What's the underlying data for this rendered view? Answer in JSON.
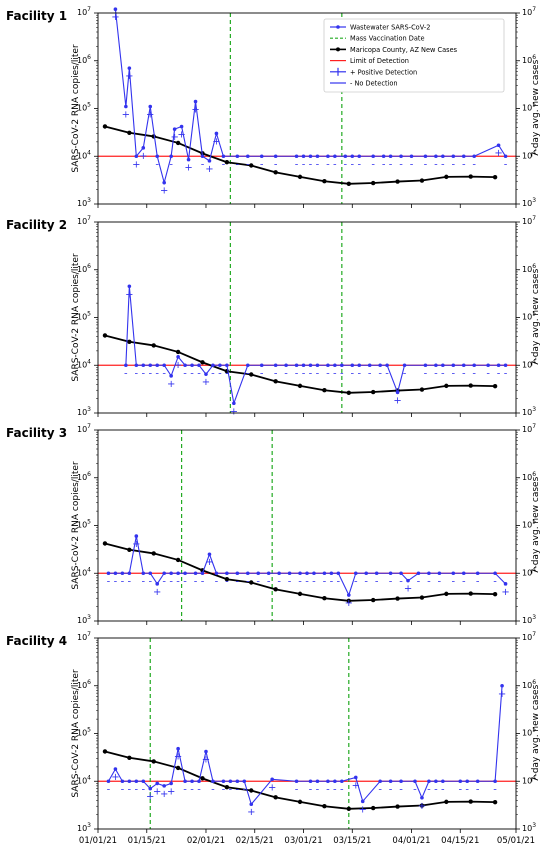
{
  "chart_data": [
    {
      "type": "line",
      "title": "Facility 1",
      "ylabel": "SARS-CoV-2 RNA copies/liter",
      "ylabel_right": "7-day avg. new cases",
      "yscale": "log",
      "ylim": [
        1000,
        10000000
      ],
      "xlim": [
        "2021-01-01",
        "2021-05-01"
      ],
      "limit_of_detection": 10000,
      "vaccination_dates": [
        "2021-02-08",
        "2021-03-12"
      ],
      "wastewater": [
        [
          "2021-01-06",
          12000000,
          "+"
        ],
        [
          "2021-01-09",
          110000,
          "+"
        ],
        [
          "2021-01-10",
          700000,
          "+"
        ],
        [
          "2021-01-12",
          10000,
          "+"
        ],
        [
          "2021-01-14",
          15000,
          "+"
        ],
        [
          "2021-01-16",
          110000,
          "+"
        ],
        [
          "2021-01-18",
          10000,
          "-"
        ],
        [
          "2021-01-20",
          2800,
          "+"
        ],
        [
          "2021-01-22",
          10000,
          "-"
        ],
        [
          "2021-01-23",
          37000,
          "+"
        ],
        [
          "2021-01-25",
          42000,
          "+"
        ],
        [
          "2021-01-27",
          8500,
          "+"
        ],
        [
          "2021-01-29",
          140000,
          "+"
        ],
        [
          "2021-01-31",
          10000,
          "-"
        ],
        [
          "2021-02-02",
          8000,
          "+"
        ],
        [
          "2021-02-04",
          30000,
          "+"
        ],
        [
          "2021-02-06",
          10000,
          "-"
        ],
        [
          "2021-02-10",
          10000,
          "-"
        ],
        [
          "2021-02-13",
          10000,
          "-"
        ],
        [
          "2021-02-17",
          10000,
          "-"
        ],
        [
          "2021-02-21",
          10000,
          "-"
        ],
        [
          "2021-02-27",
          10000,
          "-"
        ],
        [
          "2021-03-01",
          10000,
          "-"
        ],
        [
          "2021-03-03",
          10000,
          "-"
        ],
        [
          "2021-03-05",
          10000,
          "-"
        ],
        [
          "2021-03-08",
          10000,
          "-"
        ],
        [
          "2021-03-10",
          10000,
          "-"
        ],
        [
          "2021-03-13",
          10000,
          "-"
        ],
        [
          "2021-03-15",
          10000,
          "-"
        ],
        [
          "2021-03-17",
          10000,
          "-"
        ],
        [
          "2021-03-21",
          10000,
          "-"
        ],
        [
          "2021-03-24",
          10000,
          "-"
        ],
        [
          "2021-03-26",
          10000,
          "-"
        ],
        [
          "2021-03-29",
          10000,
          "-"
        ],
        [
          "2021-04-01",
          10000,
          "-"
        ],
        [
          "2021-04-05",
          10000,
          "-"
        ],
        [
          "2021-04-08",
          10000,
          "-"
        ],
        [
          "2021-04-10",
          10000,
          "-"
        ],
        [
          "2021-04-13",
          10000,
          "-"
        ],
        [
          "2021-04-16",
          10000,
          "-"
        ],
        [
          "2021-04-19",
          10000,
          "-"
        ],
        [
          "2021-04-26",
          17000,
          "+"
        ],
        [
          "2021-04-28",
          10000,
          "-"
        ]
      ]
    },
    {
      "type": "line",
      "title": "Facility 2",
      "ylabel": "SARS-CoV-2 RNA copies/liter",
      "ylabel_right": "7-day avg. new cases",
      "yscale": "log",
      "ylim": [
        1000,
        10000000
      ],
      "xlim": [
        "2021-01-01",
        "2021-05-01"
      ],
      "limit_of_detection": 10000,
      "vaccination_dates": [
        "2021-02-08",
        "2021-03-12"
      ],
      "wastewater": [
        [
          "2021-01-09",
          10000,
          "-"
        ],
        [
          "2021-01-10",
          450000,
          "+"
        ],
        [
          "2021-01-12",
          10000,
          "-"
        ],
        [
          "2021-01-14",
          10000,
          "-"
        ],
        [
          "2021-01-16",
          10000,
          "-"
        ],
        [
          "2021-01-18",
          10000,
          "-"
        ],
        [
          "2021-01-20",
          10000,
          "-"
        ],
        [
          "2021-01-22",
          6000,
          "+"
        ],
        [
          "2021-01-24",
          15000,
          "+"
        ],
        [
          "2021-01-26",
          10000,
          "-"
        ],
        [
          "2021-01-28",
          10000,
          "-"
        ],
        [
          "2021-01-30",
          10000,
          "-"
        ],
        [
          "2021-02-01",
          6500,
          "+"
        ],
        [
          "2021-02-03",
          10000,
          "-"
        ],
        [
          "2021-02-05",
          10000,
          "-"
        ],
        [
          "2021-02-07",
          10000,
          "-"
        ],
        [
          "2021-02-09",
          1600,
          "+"
        ],
        [
          "2021-02-13",
          10000,
          "-"
        ],
        [
          "2021-02-17",
          10000,
          "-"
        ],
        [
          "2021-02-21",
          10000,
          "-"
        ],
        [
          "2021-02-24",
          10000,
          "-"
        ],
        [
          "2021-02-27",
          10000,
          "-"
        ],
        [
          "2021-03-01",
          10000,
          "-"
        ],
        [
          "2021-03-03",
          10000,
          "-"
        ],
        [
          "2021-03-05",
          10000,
          "-"
        ],
        [
          "2021-03-08",
          10000,
          "-"
        ],
        [
          "2021-03-10",
          10000,
          "-"
        ],
        [
          "2021-03-12",
          10000,
          "-"
        ],
        [
          "2021-03-15",
          10000,
          "-"
        ],
        [
          "2021-03-17",
          10000,
          "-"
        ],
        [
          "2021-03-20",
          10000,
          "-"
        ],
        [
          "2021-03-23",
          10000,
          "-"
        ],
        [
          "2021-03-25",
          10000,
          "-"
        ],
        [
          "2021-03-28",
          2700,
          "+"
        ],
        [
          "2021-03-30",
          10000,
          "-"
        ],
        [
          "2021-04-05",
          10000,
          "-"
        ],
        [
          "2021-04-08",
          10000,
          "-"
        ],
        [
          "2021-04-10",
          10000,
          "-"
        ],
        [
          "2021-04-13",
          10000,
          "-"
        ],
        [
          "2021-04-16",
          10000,
          "-"
        ],
        [
          "2021-04-19",
          10000,
          "-"
        ],
        [
          "2021-04-23",
          10000,
          "-"
        ],
        [
          "2021-04-26",
          10000,
          "-"
        ],
        [
          "2021-04-28",
          10000,
          "-"
        ]
      ]
    },
    {
      "type": "line",
      "title": "Facility 3",
      "ylabel": "SARS-CoV-2 RNA copies/liter",
      "ylabel_right": "7-day avg. new cases",
      "yscale": "log",
      "ylim": [
        1000,
        10000000
      ],
      "xlim": [
        "2021-01-01",
        "2021-05-01"
      ],
      "limit_of_detection": 10000,
      "vaccination_dates": [
        "2021-01-25",
        "2021-02-20"
      ],
      "wastewater": [
        [
          "2021-01-04",
          10000,
          "-"
        ],
        [
          "2021-01-06",
          10000,
          "-"
        ],
        [
          "2021-01-08",
          10000,
          "-"
        ],
        [
          "2021-01-10",
          10000,
          "-"
        ],
        [
          "2021-01-12",
          60000,
          "+"
        ],
        [
          "2021-01-14",
          10000,
          "-"
        ],
        [
          "2021-01-16",
          10000,
          "-"
        ],
        [
          "2021-01-18",
          6000,
          "+"
        ],
        [
          "2021-01-20",
          10000,
          "-"
        ],
        [
          "2021-01-22",
          10000,
          "-"
        ],
        [
          "2021-01-24",
          10000,
          "-"
        ],
        [
          "2021-01-26",
          10000,
          "-"
        ],
        [
          "2021-01-29",
          10000,
          "-"
        ],
        [
          "2021-01-31",
          10000,
          "-"
        ],
        [
          "2021-02-02",
          25000,
          "+"
        ],
        [
          "2021-02-04",
          10000,
          "-"
        ],
        [
          "2021-02-07",
          10000,
          "-"
        ],
        [
          "2021-02-10",
          10000,
          "-"
        ],
        [
          "2021-02-13",
          10000,
          "-"
        ],
        [
          "2021-02-16",
          10000,
          "-"
        ],
        [
          "2021-02-19",
          10000,
          "-"
        ],
        [
          "2021-02-22",
          10000,
          "-"
        ],
        [
          "2021-02-25",
          10000,
          "-"
        ],
        [
          "2021-02-28",
          10000,
          "-"
        ],
        [
          "2021-03-02",
          10000,
          "-"
        ],
        [
          "2021-03-04",
          10000,
          "-"
        ],
        [
          "2021-03-07",
          10000,
          "-"
        ],
        [
          "2021-03-09",
          10000,
          "-"
        ],
        [
          "2021-03-11",
          10000,
          "-"
        ],
        [
          "2021-03-14",
          3500,
          "+"
        ],
        [
          "2021-03-16",
          10000,
          "-"
        ],
        [
          "2021-03-19",
          10000,
          "-"
        ],
        [
          "2021-03-22",
          10000,
          "-"
        ],
        [
          "2021-03-26",
          10000,
          "-"
        ],
        [
          "2021-03-29",
          10000,
          "-"
        ],
        [
          "2021-03-31",
          7000,
          "+"
        ],
        [
          "2021-04-03",
          10000,
          "-"
        ],
        [
          "2021-04-06",
          10000,
          "-"
        ],
        [
          "2021-04-09",
          10000,
          "-"
        ],
        [
          "2021-04-13",
          10000,
          "-"
        ],
        [
          "2021-04-16",
          10000,
          "-"
        ],
        [
          "2021-04-20",
          10000,
          "-"
        ],
        [
          "2021-04-25",
          10000,
          "-"
        ],
        [
          "2021-04-28",
          6000,
          "+"
        ]
      ]
    },
    {
      "type": "line",
      "title": "Facility 4",
      "ylabel": "SARS-CoV-2 RNA copies/liter",
      "ylabel_right": "7-day avg. new cases",
      "yscale": "log",
      "ylim": [
        1000,
        10000000
      ],
      "xlim": [
        "2021-01-01",
        "2021-05-01"
      ],
      "limit_of_detection": 10000,
      "vaccination_dates": [
        "2021-01-16",
        "2021-03-14"
      ],
      "wastewater": [
        [
          "2021-01-04",
          10000,
          "-"
        ],
        [
          "2021-01-06",
          18000,
          "+"
        ],
        [
          "2021-01-08",
          10000,
          "-"
        ],
        [
          "2021-01-10",
          10000,
          "-"
        ],
        [
          "2021-01-12",
          10000,
          "-"
        ],
        [
          "2021-01-14",
          10000,
          "-"
        ],
        [
          "2021-01-16",
          7000,
          "+"
        ],
        [
          "2021-01-18",
          9000,
          "+"
        ],
        [
          "2021-01-20",
          8000,
          "+"
        ],
        [
          "2021-01-22",
          9000,
          "+"
        ],
        [
          "2021-01-24",
          48000,
          "+"
        ],
        [
          "2021-01-26",
          10000,
          "-"
        ],
        [
          "2021-01-28",
          10000,
          "-"
        ],
        [
          "2021-01-30",
          10000,
          "-"
        ],
        [
          "2021-02-01",
          42000,
          "+"
        ],
        [
          "2021-02-03",
          10000,
          "-"
        ],
        [
          "2021-02-06",
          10000,
          "-"
        ],
        [
          "2021-02-08",
          10000,
          "-"
        ],
        [
          "2021-02-10",
          10000,
          "-"
        ],
        [
          "2021-02-12",
          10000,
          "-"
        ],
        [
          "2021-02-14",
          3300,
          "+"
        ],
        [
          "2021-02-20",
          11000,
          "+"
        ],
        [
          "2021-02-27",
          10000,
          "-"
        ],
        [
          "2021-03-03",
          10000,
          "-"
        ],
        [
          "2021-03-05",
          10000,
          "-"
        ],
        [
          "2021-03-08",
          10000,
          "-"
        ],
        [
          "2021-03-10",
          10000,
          "-"
        ],
        [
          "2021-03-12",
          10000,
          "-"
        ],
        [
          "2021-03-16",
          12000,
          "+"
        ],
        [
          "2021-03-18",
          3800,
          "+"
        ],
        [
          "2021-03-23",
          10000,
          "-"
        ],
        [
          "2021-03-26",
          10000,
          "-"
        ],
        [
          "2021-03-29",
          10000,
          "-"
        ],
        [
          "2021-04-02",
          10000,
          "-"
        ],
        [
          "2021-04-04",
          4500,
          "+"
        ],
        [
          "2021-04-06",
          10000,
          "-"
        ],
        [
          "2021-04-08",
          10000,
          "-"
        ],
        [
          "2021-04-10",
          10000,
          "-"
        ],
        [
          "2021-04-15",
          10000,
          "-"
        ],
        [
          "2021-04-17",
          10000,
          "-"
        ],
        [
          "2021-04-20",
          10000,
          "-"
        ],
        [
          "2021-04-25",
          10000,
          "-"
        ],
        [
          "2021-04-27",
          1000000,
          "+"
        ]
      ]
    }
  ],
  "county_cases": [
    [
      "2021-01-03",
      42000
    ],
    [
      "2021-01-10",
      31000
    ],
    [
      "2021-01-17",
      26000
    ],
    [
      "2021-01-24",
      19000
    ],
    [
      "2021-01-31",
      11500
    ],
    [
      "2021-02-07",
      7500
    ],
    [
      "2021-02-14",
      6400
    ],
    [
      "2021-02-21",
      4600
    ],
    [
      "2021-02-28",
      3700
    ],
    [
      "2021-03-07",
      3000
    ],
    [
      "2021-03-14",
      2650
    ],
    [
      "2021-03-21",
      2750
    ],
    [
      "2021-03-28",
      2950
    ],
    [
      "2021-04-04",
      3100
    ],
    [
      "2021-04-11",
      3700
    ],
    [
      "2021-04-18",
      3750
    ],
    [
      "2021-04-25",
      3650
    ]
  ],
  "legend": {
    "wastewater": "Wastewater SARS-CoV-2",
    "vaccination": "Mass Vaccination Date",
    "county": "Maricopa County, AZ New Cases",
    "lod": "Limit of Detection",
    "positive": "+ Positive Detection",
    "negative": "- No Detection"
  },
  "x_tick_labels": [
    "01/01/21",
    "01/15/21",
    "02/01/21",
    "02/15/21",
    "03/01/21",
    "03/15/21",
    "04/01/21",
    "04/15/21",
    "05/01/21"
  ],
  "x_tick_dates": [
    "2021-01-01",
    "2021-01-15",
    "2021-02-01",
    "2021-02-15",
    "2021-03-01",
    "2021-03-15",
    "2021-04-01",
    "2021-04-15",
    "2021-05-01"
  ],
  "colors": {
    "wastewater": "#3333ee",
    "vaccination": "#22aa22",
    "county": "#000000",
    "lod": "#ff2020"
  }
}
